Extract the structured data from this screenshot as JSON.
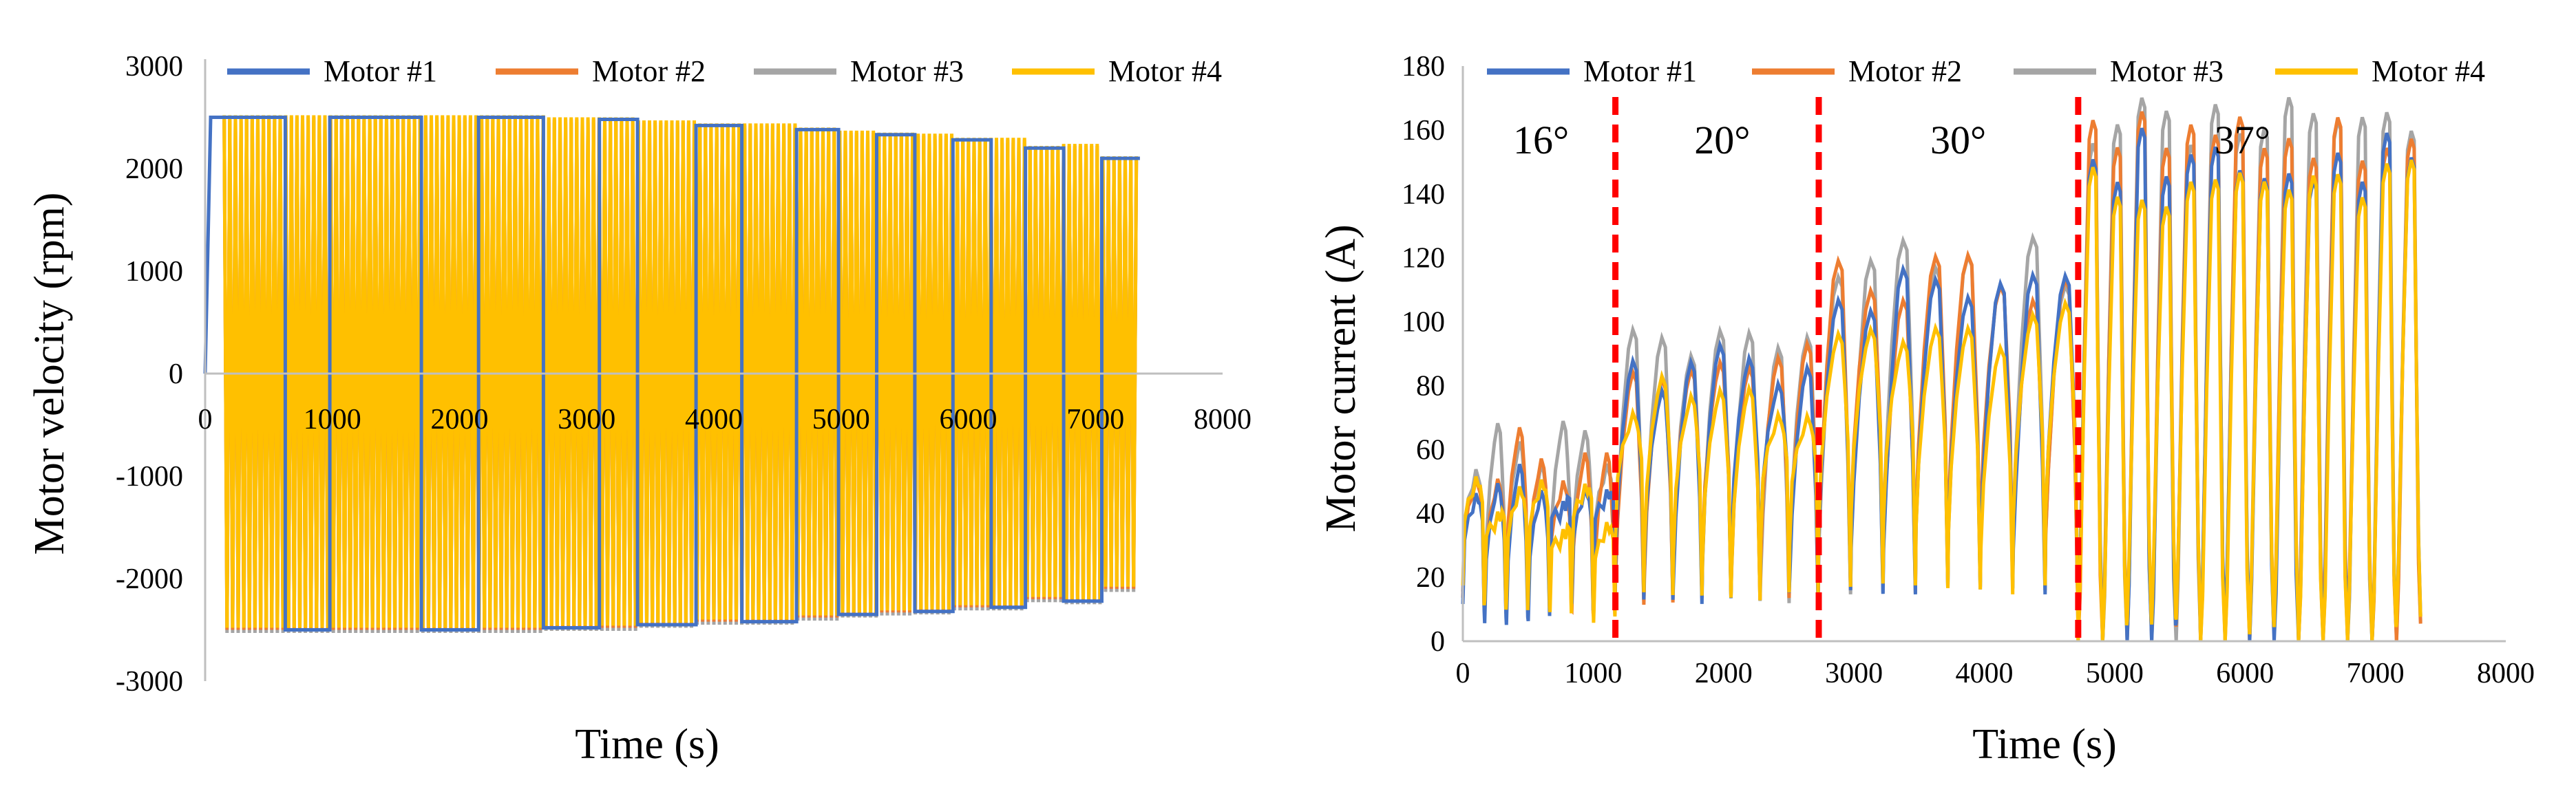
{
  "colors": {
    "motor1": "#4472C4",
    "motor2": "#ED7D31",
    "motor3": "#A5A5A5",
    "motor4": "#FFC000",
    "divider": "#FF0000"
  },
  "legend": [
    "Motor #1",
    "Motor #2",
    "Motor #3",
    "Motor #4"
  ],
  "chart_data": [
    {
      "type": "line",
      "title": "",
      "xlabel": "Time (s)",
      "ylabel": "Motor velocity (rpm)",
      "xlim": [
        0,
        8000
      ],
      "ylim": [
        -3000,
        3000
      ],
      "xticks": [
        "0",
        "1000",
        "2000",
        "3000",
        "4000",
        "5000",
        "6000",
        "7000",
        "8000"
      ],
      "yticks": [
        "-3000",
        "-2000",
        "-1000",
        "0",
        "1000",
        "2000",
        "3000"
      ],
      "legend_position": "top",
      "grid": false,
      "segments": [
        [
          0,
          630,
          2500
        ],
        [
          630,
          980,
          -2500
        ],
        [
          980,
          1700,
          2500
        ],
        [
          1700,
          2150,
          -2500
        ],
        [
          2150,
          2660,
          2500
        ],
        [
          2660,
          3100,
          -2480
        ],
        [
          3100,
          3400,
          2480
        ],
        [
          3400,
          3860,
          -2450
        ],
        [
          3860,
          4220,
          2420
        ],
        [
          4220,
          4650,
          -2420
        ],
        [
          4650,
          4980,
          2380
        ],
        [
          4980,
          5280,
          -2350
        ],
        [
          5280,
          5580,
          2330
        ],
        [
          5580,
          5880,
          -2320
        ],
        [
          5880,
          6180,
          2280
        ],
        [
          6180,
          6450,
          -2280
        ],
        [
          6450,
          6750,
          2200
        ],
        [
          6750,
          7050,
          -2220
        ],
        [
          7050,
          7350,
          2100
        ]
      ],
      "series": [
        {
          "name": "Motor #1",
          "role": "square-wave velocity between about +2500 and -2500 rpm"
        },
        {
          "name": "Motor #2",
          "role": "oscillating velocity"
        },
        {
          "name": "Motor #3",
          "role": "oscillating velocity"
        },
        {
          "name": "Motor #4",
          "role": "oscillating velocity, ±2500 rpm"
        }
      ]
    },
    {
      "type": "line",
      "title": "",
      "xlabel": "Time (s)",
      "ylabel": "Motor current (A)",
      "xlim": [
        0,
        8000
      ],
      "ylim": [
        0,
        180
      ],
      "xticks": [
        "0",
        "1000",
        "2000",
        "3000",
        "4000",
        "5000",
        "6000",
        "7000",
        "8000"
      ],
      "yticks": [
        "0",
        "20",
        "40",
        "60",
        "80",
        "100",
        "120",
        "140",
        "160",
        "180"
      ],
      "legend_position": "top",
      "grid": false,
      "dividers": [
        1170,
        2730,
        4720
      ],
      "annotations": [
        {
          "text": "16°",
          "x": 600,
          "y": 157
        },
        {
          "text": "20°",
          "x": 1990,
          "y": 157
        },
        {
          "text": "30°",
          "x": 3800,
          "y": 157
        },
        {
          "text": "37°",
          "x": 5980,
          "y": 157
        }
      ],
      "phases": [
        {
          "angle": "16°",
          "start": 0,
          "end": 1170,
          "peak_avg": 55,
          "base": 32
        },
        {
          "angle": "20°",
          "start": 1170,
          "end": 2730,
          "peak_avg": 88,
          "base": 45
        },
        {
          "angle": "30°",
          "start": 2730,
          "end": 4720,
          "peak_avg": 112,
          "base": 55
        },
        {
          "angle": "37°",
          "start": 4720,
          "end": 7350,
          "peak_avg": 155,
          "base": 20
        }
      ],
      "series": [
        {
          "name": "Motor #1",
          "offset": -3
        },
        {
          "name": "Motor #2",
          "offset": 3
        },
        {
          "name": "Motor #3",
          "offset": 7
        },
        {
          "name": "Motor #4",
          "offset": -12
        }
      ]
    }
  ]
}
